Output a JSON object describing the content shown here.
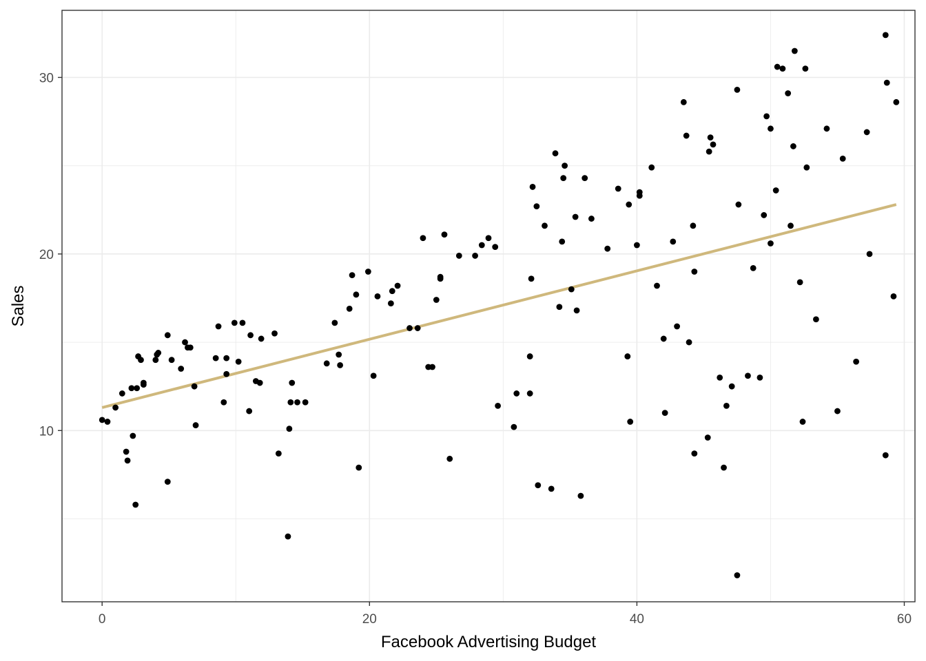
{
  "chart_data": {
    "type": "scatter",
    "title": "",
    "xlabel": "Facebook Advertising Budget",
    "ylabel": "Sales",
    "xlim": [
      -3.0,
      60.8
    ],
    "ylim": [
      0.3,
      33.8
    ],
    "xticks": [
      0,
      20,
      40,
      60
    ],
    "yticks": [
      10,
      20,
      30
    ],
    "grid": true,
    "legend": "none",
    "colors": {
      "points": "#000000",
      "trend": "#CFB87C",
      "grid": "#EBEBEB",
      "panel_border": "#333333"
    },
    "points": [
      [
        0.0,
        10.6
      ],
      [
        0.4,
        10.5
      ],
      [
        1.0,
        11.3
      ],
      [
        1.5,
        12.1
      ],
      [
        1.8,
        8.8
      ],
      [
        1.9,
        8.3
      ],
      [
        2.2,
        12.4
      ],
      [
        2.3,
        9.7
      ],
      [
        2.5,
        5.8
      ],
      [
        2.6,
        12.4
      ],
      [
        2.7,
        14.2
      ],
      [
        2.9,
        14.0
      ],
      [
        3.1,
        12.7
      ],
      [
        3.1,
        12.6
      ],
      [
        4.0,
        14.0
      ],
      [
        4.1,
        14.3
      ],
      [
        4.2,
        14.4
      ],
      [
        4.9,
        15.4
      ],
      [
        4.9,
        7.1
      ],
      [
        5.2,
        14.0
      ],
      [
        5.9,
        13.5
      ],
      [
        6.2,
        15.0
      ],
      [
        6.4,
        14.7
      ],
      [
        6.6,
        14.7
      ],
      [
        6.9,
        12.5
      ],
      [
        7.0,
        10.3
      ],
      [
        8.5,
        14.1
      ],
      [
        8.7,
        15.9
      ],
      [
        9.1,
        11.6
      ],
      [
        9.3,
        13.2
      ],
      [
        9.3,
        14.1
      ],
      [
        9.9,
        16.1
      ],
      [
        10.2,
        13.9
      ],
      [
        10.5,
        16.1
      ],
      [
        11.0,
        11.1
      ],
      [
        11.1,
        15.4
      ],
      [
        11.5,
        12.8
      ],
      [
        11.8,
        12.7
      ],
      [
        11.9,
        15.2
      ],
      [
        12.9,
        15.5
      ],
      [
        13.2,
        8.7
      ],
      [
        13.9,
        4.0
      ],
      [
        14.0,
        10.1
      ],
      [
        14.1,
        11.6
      ],
      [
        14.2,
        12.7
      ],
      [
        14.6,
        11.6
      ],
      [
        15.2,
        11.6
      ],
      [
        16.8,
        13.8
      ],
      [
        17.4,
        16.1
      ],
      [
        17.7,
        14.3
      ],
      [
        17.8,
        13.7
      ],
      [
        18.5,
        16.9
      ],
      [
        18.7,
        18.8
      ],
      [
        19.0,
        17.7
      ],
      [
        19.2,
        7.9
      ],
      [
        19.9,
        19.0
      ],
      [
        20.3,
        13.1
      ],
      [
        20.6,
        17.6
      ],
      [
        21.6,
        17.2
      ],
      [
        21.7,
        17.9
      ],
      [
        22.1,
        18.2
      ],
      [
        23.0,
        15.8
      ],
      [
        23.6,
        15.8
      ],
      [
        24.0,
        20.9
      ],
      [
        24.4,
        13.6
      ],
      [
        24.7,
        13.6
      ],
      [
        25.0,
        17.4
      ],
      [
        25.3,
        18.6
      ],
      [
        25.3,
        18.7
      ],
      [
        25.6,
        21.1
      ],
      [
        26.0,
        8.4
      ],
      [
        26.7,
        19.9
      ],
      [
        27.9,
        19.9
      ],
      [
        28.4,
        20.5
      ],
      [
        28.9,
        20.9
      ],
      [
        29.4,
        20.4
      ],
      [
        29.6,
        11.4
      ],
      [
        30.8,
        10.2
      ],
      [
        31.0,
        12.1
      ],
      [
        32.0,
        12.1
      ],
      [
        32.0,
        14.2
      ],
      [
        32.1,
        18.6
      ],
      [
        32.2,
        23.8
      ],
      [
        32.5,
        22.7
      ],
      [
        32.6,
        6.9
      ],
      [
        33.1,
        21.6
      ],
      [
        33.6,
        6.7
      ],
      [
        33.9,
        25.7
      ],
      [
        34.2,
        17.0
      ],
      [
        34.4,
        20.7
      ],
      [
        34.5,
        24.3
      ],
      [
        34.6,
        25.0
      ],
      [
        35.1,
        18.0
      ],
      [
        35.4,
        22.1
      ],
      [
        35.5,
        16.8
      ],
      [
        35.8,
        6.3
      ],
      [
        36.1,
        24.3
      ],
      [
        36.6,
        22.0
      ],
      [
        37.8,
        20.3
      ],
      [
        38.6,
        23.7
      ],
      [
        39.3,
        14.2
      ],
      [
        39.4,
        22.8
      ],
      [
        39.5,
        10.5
      ],
      [
        40.0,
        20.5
      ],
      [
        40.2,
        23.3
      ],
      [
        40.2,
        23.5
      ],
      [
        41.1,
        24.9
      ],
      [
        41.5,
        18.2
      ],
      [
        42.0,
        15.2
      ],
      [
        42.1,
        11.0
      ],
      [
        42.7,
        20.7
      ],
      [
        43.0,
        15.9
      ],
      [
        43.5,
        28.6
      ],
      [
        43.7,
        26.7
      ],
      [
        43.9,
        15.0
      ],
      [
        44.2,
        21.6
      ],
      [
        44.3,
        8.7
      ],
      [
        44.3,
        19.0
      ],
      [
        45.3,
        9.6
      ],
      [
        45.4,
        25.8
      ],
      [
        45.5,
        26.6
      ],
      [
        45.7,
        26.2
      ],
      [
        46.2,
        13.0
      ],
      [
        46.5,
        7.9
      ],
      [
        46.7,
        11.4
      ],
      [
        47.1,
        12.5
      ],
      [
        47.5,
        29.3
      ],
      [
        47.5,
        1.8
      ],
      [
        47.6,
        22.8
      ],
      [
        48.3,
        13.1
      ],
      [
        48.7,
        19.2
      ],
      [
        49.2,
        13.0
      ],
      [
        49.5,
        22.2
      ],
      [
        49.7,
        27.8
      ],
      [
        50.0,
        20.6
      ],
      [
        50.0,
        27.1
      ],
      [
        50.4,
        23.6
      ],
      [
        50.5,
        30.6
      ],
      [
        50.9,
        30.5
      ],
      [
        51.3,
        29.1
      ],
      [
        51.5,
        21.6
      ],
      [
        51.7,
        26.1
      ],
      [
        51.8,
        31.5
      ],
      [
        52.2,
        18.4
      ],
      [
        52.4,
        10.5
      ],
      [
        52.6,
        30.5
      ],
      [
        52.7,
        24.9
      ],
      [
        53.4,
        16.3
      ],
      [
        54.2,
        27.1
      ],
      [
        55.0,
        11.1
      ],
      [
        55.4,
        25.4
      ],
      [
        56.4,
        13.9
      ],
      [
        57.2,
        26.9
      ],
      [
        57.4,
        20.0
      ],
      [
        58.6,
        8.6
      ],
      [
        58.6,
        32.4
      ],
      [
        58.7,
        29.7
      ],
      [
        59.2,
        17.6
      ],
      [
        59.4,
        28.6
      ]
    ],
    "trend_line": {
      "x": [
        0.0,
        59.4
      ],
      "y": [
        11.3,
        22.8
      ]
    }
  }
}
